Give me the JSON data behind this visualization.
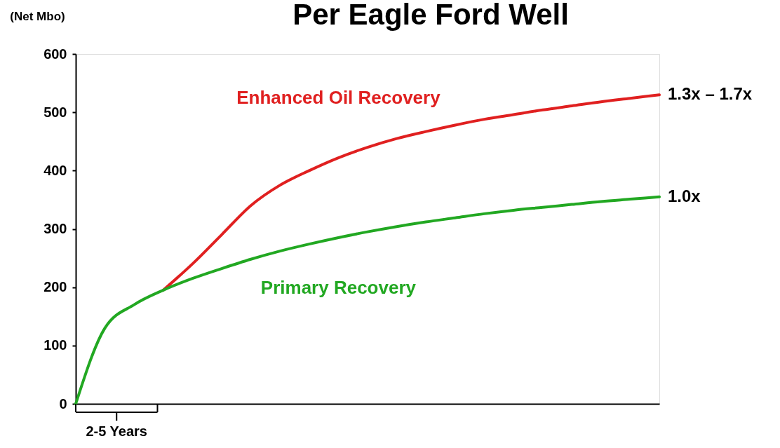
{
  "chart_data": {
    "type": "line",
    "title": "Per Eagle Ford Well",
    "ylabel": "(Net Mbo)",
    "categories": [
      null,
      null,
      null,
      null,
      null,
      null,
      null,
      null,
      null,
      null,
      null,
      null,
      null,
      null,
      null,
      null,
      null,
      null,
      null,
      null,
      null
    ],
    "series": [
      {
        "name": "Enhanced Oil Recovery",
        "color": "#e02020",
        "values": [
          null,
          null,
          null,
          195,
          240,
          290,
          340,
          375,
          400,
          422,
          440,
          455,
          467,
          478,
          488,
          496,
          504,
          511,
          518,
          524,
          530
        ]
      },
      {
        "name": "Primary Recovery",
        "color": "#22a822",
        "values": [
          0,
          130,
          170,
          195,
          215,
          232,
          248,
          262,
          274,
          285,
          295,
          304,
          312,
          319,
          326,
          332,
          337,
          342,
          347,
          351,
          355
        ]
      }
    ],
    "annotations": [
      "1.3x – 1.7x",
      "1.0x",
      "2-5 Years"
    ],
    "ylim": [
      0,
      600
    ],
    "yticks": [
      0,
      100,
      200,
      300,
      400,
      500,
      600
    ],
    "grid": false,
    "marker": "none",
    "line_style": "solid"
  }
}
